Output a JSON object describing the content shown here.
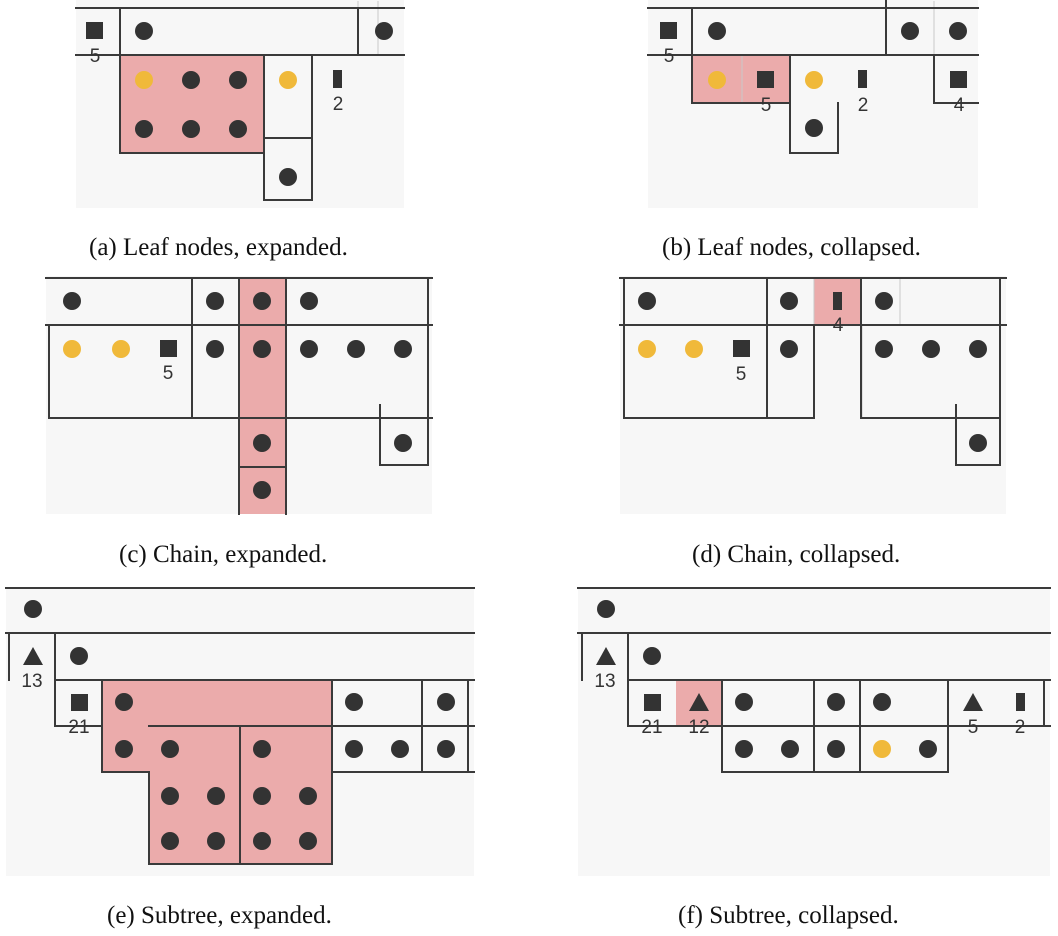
{
  "panels": [
    {
      "id": "a",
      "caption": "(a) Leaf nodes, expanded.",
      "counts": [
        "5",
        "2"
      ]
    },
    {
      "id": "b",
      "caption": "(b) Leaf nodes, collapsed.",
      "counts": [
        "5",
        "5",
        "2",
        "4"
      ]
    },
    {
      "id": "c",
      "caption": "(c) Chain, expanded.",
      "counts": [
        "5"
      ]
    },
    {
      "id": "d",
      "caption": "(d) Chain, collapsed.",
      "counts": [
        "4",
        "5"
      ]
    },
    {
      "id": "e",
      "caption": "(e) Subtree, expanded.",
      "counts": [
        "13",
        "21"
      ]
    },
    {
      "id": "f",
      "caption": "(f) Subtree, collapsed.",
      "counts": [
        "13",
        "21",
        "12",
        "5",
        "2"
      ]
    }
  ],
  "colors": {
    "highlight": "#e89a9a",
    "node_dark": "#333333",
    "node_yellow": "#f0b93a",
    "grid_line": "#3a3a3a",
    "panel_background": "#f7f7f7"
  },
  "glyph_legend": {
    "circle": "single node",
    "square": "collapsed leaf nodes",
    "bar": "collapsed chain",
    "triangle": "collapsed subtree"
  }
}
